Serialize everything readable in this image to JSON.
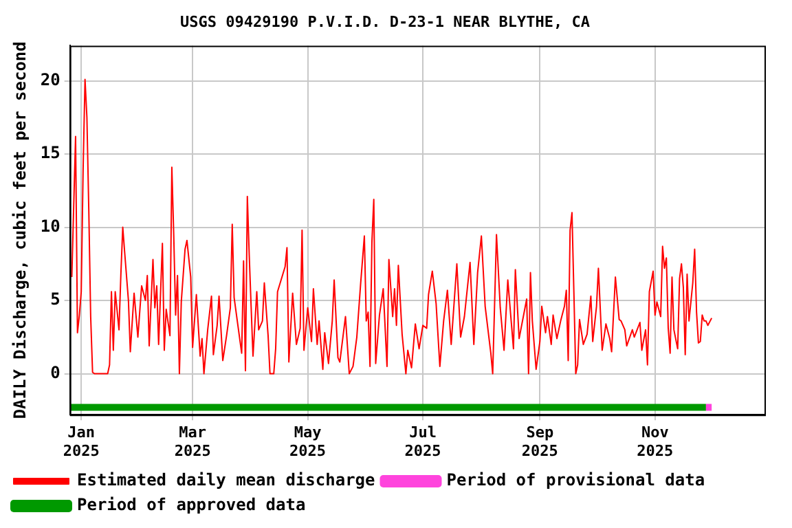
{
  "chart_data": {
    "type": "line",
    "title": "USGS 09429190 P.V.I.D. D-23-1 NEAR BLYTHE, CA",
    "ylabel": "DAILY Discharge, cubic feet per second",
    "xlim": [
      "2024-12-26",
      "2025-12-29"
    ],
    "xticks": [
      {
        "value": "2025-01-01",
        "label": "Jan 2025"
      },
      {
        "value": "2025-03-01",
        "label": "Mar 2025"
      },
      {
        "value": "2025-05-01",
        "label": "May 2025"
      },
      {
        "value": "2025-07-01",
        "label": "Jul 2025"
      },
      {
        "value": "2025-09-01",
        "label": "Sep 2025"
      },
      {
        "value": "2025-11-01",
        "label": "Nov 2025"
      }
    ],
    "ylim": [
      -2.8,
      22.4
    ],
    "yticks": [
      0,
      5,
      10,
      15,
      20
    ],
    "grid": true,
    "legend": "bottom",
    "marker": "none",
    "line_style": "solid",
    "series": [
      {
        "name": "Estimated daily mean discharge",
        "color": "#ff0000",
        "x": [
          "2024-12-27",
          "2024-12-28",
          "2024-12-29",
          "2024-12-30",
          "2024-12-31",
          "2025-01-01",
          "2025-01-02",
          "2025-01-03",
          "2025-01-04",
          "2025-01-05",
          "2025-01-06",
          "2025-01-07",
          "2025-01-08",
          "2025-01-15",
          "2025-01-16",
          "2025-01-17",
          "2025-01-18",
          "2025-01-19",
          "2025-01-21",
          "2025-01-22",
          "2025-01-23",
          "2025-01-24",
          "2025-01-26",
          "2025-01-27",
          "2025-01-29",
          "2025-01-31",
          "2025-02-02",
          "2025-02-04",
          "2025-02-05",
          "2025-02-06",
          "2025-02-08",
          "2025-02-09",
          "2025-02-10",
          "2025-02-11",
          "2025-02-13",
          "2025-02-14",
          "2025-02-15",
          "2025-02-17",
          "2025-02-18",
          "2025-02-19",
          "2025-02-20",
          "2025-02-21",
          "2025-02-22",
          "2025-02-23",
          "2025-02-25",
          "2025-02-26",
          "2025-02-28",
          "2025-03-01",
          "2025-03-03",
          "2025-03-05",
          "2025-03-06",
          "2025-03-07",
          "2025-03-09",
          "2025-03-11",
          "2025-03-12",
          "2025-03-14",
          "2025-03-15",
          "2025-03-17",
          "2025-03-19",
          "2025-03-21",
          "2025-03-22",
          "2025-03-23",
          "2025-03-25",
          "2025-03-27",
          "2025-03-28",
          "2025-03-29",
          "2025-03-30",
          "2025-03-31",
          "2025-04-01",
          "2025-04-02",
          "2025-04-04",
          "2025-04-05",
          "2025-04-07",
          "2025-04-08",
          "2025-04-10",
          "2025-04-11",
          "2025-04-13",
          "2025-04-14",
          "2025-04-15",
          "2025-04-19",
          "2025-04-20",
          "2025-04-21",
          "2025-04-23",
          "2025-04-25",
          "2025-04-27",
          "2025-04-28",
          "2025-04-29",
          "2025-05-01",
          "2025-05-03",
          "2025-05-04",
          "2025-05-06",
          "2025-05-07",
          "2025-05-09",
          "2025-05-10",
          "2025-05-12",
          "2025-05-14",
          "2025-05-15",
          "2025-05-17",
          "2025-05-18",
          "2025-05-21",
          "2025-05-23",
          "2025-05-25",
          "2025-05-27",
          "2025-05-29",
          "2025-05-31",
          "2025-06-01",
          "2025-06-02",
          "2025-06-03",
          "2025-06-04",
          "2025-06-05",
          "2025-06-06",
          "2025-06-08",
          "2025-06-10",
          "2025-06-12",
          "2025-06-13",
          "2025-06-15",
          "2025-06-16",
          "2025-06-17",
          "2025-06-18",
          "2025-06-20",
          "2025-06-22",
          "2025-06-23",
          "2025-06-25",
          "2025-06-27",
          "2025-06-29",
          "2025-07-01",
          "2025-07-03",
          "2025-07-04",
          "2025-07-06",
          "2025-07-08",
          "2025-07-10",
          "2025-07-12",
          "2025-07-14",
          "2025-07-16",
          "2025-07-19",
          "2025-07-21",
          "2025-07-23",
          "2025-07-26",
          "2025-07-28",
          "2025-07-30",
          "2025-08-01",
          "2025-08-03",
          "2025-08-06",
          "2025-08-07",
          "2025-08-09",
          "2025-08-11",
          "2025-08-13",
          "2025-08-15",
          "2025-08-18",
          "2025-08-19",
          "2025-08-21",
          "2025-08-25",
          "2025-08-26",
          "2025-08-27",
          "2025-08-28",
          "2025-08-30",
          "2025-09-01",
          "2025-09-02",
          "2025-09-04",
          "2025-09-05",
          "2025-09-07",
          "2025-09-08",
          "2025-09-10",
          "2025-09-12",
          "2025-09-14",
          "2025-09-15",
          "2025-09-16",
          "2025-09-17",
          "2025-09-18",
          "2025-09-19",
          "2025-09-20",
          "2025-09-21",
          "2025-09-22",
          "2025-09-24",
          "2025-09-26",
          "2025-09-28",
          "2025-09-29",
          "2025-10-01",
          "2025-10-02",
          "2025-10-04",
          "2025-10-06",
          "2025-10-08",
          "2025-10-09",
          "2025-10-11",
          "2025-10-13",
          "2025-10-14",
          "2025-10-16",
          "2025-10-17",
          "2025-10-20",
          "2025-10-21",
          "2025-10-24",
          "2025-10-25",
          "2025-10-27",
          "2025-10-28",
          "2025-10-29",
          "2025-10-31",
          "2025-11-01",
          "2025-11-02",
          "2025-11-04",
          "2025-11-05",
          "2025-11-06",
          "2025-11-07",
          "2025-11-08",
          "2025-11-09",
          "2025-11-10",
          "2025-11-11",
          "2025-11-13",
          "2025-11-14",
          "2025-11-15",
          "2025-11-16",
          "2025-11-17",
          "2025-11-18",
          "2025-11-19",
          "2025-11-21",
          "2025-11-22",
          "2025-11-23",
          "2025-11-24",
          "2025-11-25",
          "2025-11-26",
          "2025-11-27",
          "2025-11-28",
          "2025-11-29",
          "2025-12-01"
        ],
        "values": [
          6.6,
          11.4,
          16.2,
          2.8,
          4.0,
          5.6,
          14,
          20.1,
          17.5,
          11.2,
          3.9,
          0.1,
          0,
          0,
          0.6,
          5.6,
          1.6,
          5.6,
          3,
          6.8,
          10,
          8.3,
          5,
          1.5,
          5.5,
          2.5,
          6,
          5,
          6.7,
          1.9,
          7.8,
          4.5,
          6,
          2,
          8.9,
          1.6,
          4.4,
          2.6,
          14.1,
          9.5,
          4,
          6.7,
          0,
          4.9,
          8.5,
          9.1,
          6.6,
          1.8,
          5.4,
          1.2,
          2.4,
          0,
          3,
          5.3,
          1.3,
          3.3,
          5.3,
          0.9,
          2.6,
          4.5,
          10.2,
          5.2,
          3.3,
          1.4,
          7.7,
          0.2,
          12.1,
          8.1,
          4.6,
          1.2,
          5.6,
          3,
          3.6,
          6.2,
          2.6,
          0,
          0,
          1.7,
          5.6,
          7.3,
          8.6,
          0.8,
          5.5,
          2,
          3.1,
          9.8,
          1.6,
          4.5,
          2.2,
          5.8,
          2,
          3.6,
          0.3,
          2.8,
          0.7,
          3.6,
          6.4,
          1.1,
          0.8,
          3.9,
          0,
          0.5,
          2.5,
          6.1,
          9.4,
          3.6,
          4.2,
          0.5,
          9,
          11.9,
          0.7,
          4,
          5.8,
          0.5,
          7.8,
          3.9,
          5.8,
          3.3,
          7.4,
          2.7,
          0,
          1.6,
          0.4,
          3.4,
          1.7,
          3.3,
          3.1,
          5.4,
          7,
          4.8,
          0.5,
          3.6,
          5.7,
          2,
          7.5,
          2.5,
          3.9,
          7.6,
          2,
          6.9,
          9.4,
          4.6,
          1.4,
          0,
          9.5,
          4.5,
          1.6,
          6.4,
          1.7,
          7.1,
          2.4,
          5.1,
          0,
          6.9,
          3.6,
          0.3,
          2.2,
          4.6,
          2.8,
          3.9,
          2,
          4,
          2.4,
          3.6,
          4.6,
          5.7,
          0.9,
          9.8,
          11,
          5.6,
          0,
          0.6,
          3.7,
          2,
          2.7,
          5.3,
          2.2,
          4.6,
          7.2,
          1.6,
          3.4,
          2.4,
          1.5,
          6.6,
          3.7,
          3.6,
          3,
          1.9,
          3,
          2.5,
          3.5,
          1.6,
          3,
          0.6,
          5.6,
          7,
          4,
          4.9,
          3.9,
          8.7,
          7.2,
          7.9,
          3.1,
          1.4,
          6.6,
          3,
          1.7,
          6.5,
          7.5,
          5.9,
          1.3,
          6.8,
          3.6,
          6.2,
          8.5,
          4.2,
          2.1,
          2.2,
          4,
          3.6,
          3.6,
          3.3,
          3.8
        ]
      },
      {
        "name": "Period of provisional data",
        "color": "#ff44dd",
        "x": [
          "2025-11-28",
          "2025-12-01"
        ],
        "values": [
          -2.3,
          -2.3
        ]
      },
      {
        "name": "Period of approved data",
        "color": "#009900",
        "x": [
          "2024-12-26",
          "2025-11-28"
        ],
        "values": [
          -2.3,
          -2.3
        ]
      }
    ]
  }
}
